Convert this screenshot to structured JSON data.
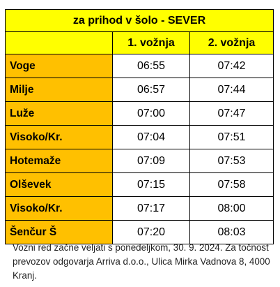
{
  "table": {
    "title": "za prihod v šolo - SEVER",
    "columns": [
      "1. vožnja",
      "2. vožnja"
    ],
    "rows": [
      {
        "stop": "Voge",
        "t1": "06:55",
        "t2": "07:42"
      },
      {
        "stop": "Milje",
        "t1": "06:57",
        "t2": "07:44"
      },
      {
        "stop": "Luže",
        "t1": "07:00",
        "t2": "07:47"
      },
      {
        "stop": "Visoko/Kr.",
        "t1": "07:04",
        "t2": "07:51"
      },
      {
        "stop": "Hotemaže",
        "t1": "07:09",
        "t2": "07:53"
      },
      {
        "stop": "Olševek",
        "t1": "07:15",
        "t2": "07:58"
      },
      {
        "stop": "Visoko/Kr.",
        "t1": "07:17",
        "t2": "08:00"
      },
      {
        "stop": "Šenčur Š",
        "t1": "07:20",
        "t2": "08:03"
      }
    ]
  },
  "note": "Vozni red začne veljati s ponedeljkom, 30. 9. 2024. Za točnost prevozov odgovarja Arriva d.o.o., Ulica Mirka Vadnova 8, 4000 Kranj."
}
